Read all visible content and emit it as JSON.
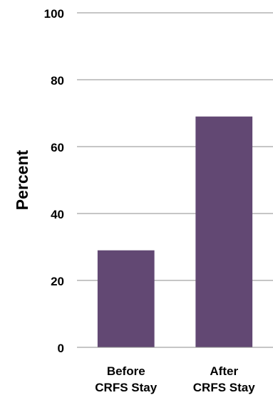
{
  "chart_data": {
    "type": "bar",
    "categories": [
      [
        "Before",
        "CRFS Stay"
      ],
      [
        "After",
        "CRFS Stay"
      ]
    ],
    "values": [
      29,
      69
    ],
    "title": "",
    "xlabel": "",
    "ylabel": "Percent",
    "ylim": [
      0,
      100
    ],
    "yticks": [
      "0",
      "20",
      "40",
      "60",
      "80",
      "100"
    ],
    "grid": true,
    "legend": "none",
    "colors": {
      "bar": "#624873",
      "grid": "#8c8c8c",
      "text": "#000000"
    }
  }
}
